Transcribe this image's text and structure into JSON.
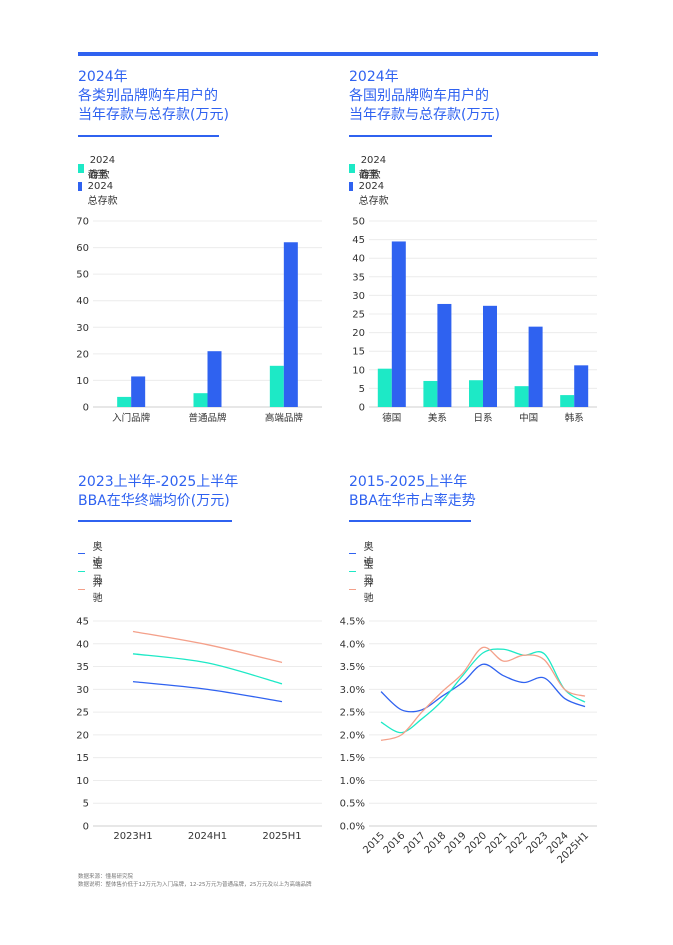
{
  "footer": {
    "source": "数据来源：懂易研究院",
    "note": "数据说明：整体售价低于12万元为入门品牌，12-25万元为普通品牌，25万元及以上为高端品牌"
  },
  "chart_data": [
    {
      "type": "bar",
      "title": "2024年\n各类别品牌购车用户的\n当年存款与总存款(万元)",
      "categories": [
        "入门品牌",
        "普通品牌",
        "高端品牌"
      ],
      "series": [
        {
          "name": "2024存款",
          "color": "#1de9c6",
          "values": [
            3.8,
            5.2,
            15.5
          ]
        },
        {
          "name": "截至2024总存款",
          "color": "#2f62f0",
          "values": [
            11.5,
            21.0,
            62.0
          ]
        }
      ],
      "ylim": [
        0,
        70
      ],
      "yticks": [
        0,
        10,
        20,
        30,
        40,
        50,
        60,
        70
      ],
      "grid": true,
      "legend": "top-left"
    },
    {
      "type": "bar",
      "title": "2024年\n各国别品牌购车用户的\n当年存款与总存款(万元)",
      "categories": [
        "德国",
        "美系",
        "日系",
        "中国",
        "韩系"
      ],
      "series": [
        {
          "name": "2024存款",
          "color": "#1de9c6",
          "values": [
            10.3,
            7.0,
            7.2,
            5.6,
            3.2
          ]
        },
        {
          "name": "截至2024总存款",
          "color": "#2f62f0",
          "values": [
            44.5,
            27.7,
            27.2,
            21.6,
            11.2
          ]
        }
      ],
      "ylim": [
        0,
        50
      ],
      "yticks": [
        0,
        5,
        10,
        15,
        20,
        25,
        30,
        35,
        40,
        45,
        50
      ],
      "grid": true,
      "legend": "top-left"
    },
    {
      "type": "line",
      "title": "2023上半年-2025上半年\nBBA在华终端均价(万元)",
      "categories": [
        "2023H1",
        "2024H1",
        "2025H1"
      ],
      "series": [
        {
          "name": "奥迪",
          "color": "#2f62f0",
          "values": [
            31.7,
            30.0,
            27.3
          ]
        },
        {
          "name": "宝马",
          "color": "#1de9c6",
          "values": [
            37.8,
            35.8,
            31.2
          ]
        },
        {
          "name": "奔驰",
          "color": "#f4a08a",
          "values": [
            42.7,
            39.8,
            35.9
          ]
        }
      ],
      "ylim": [
        0,
        45
      ],
      "yticks": [
        0,
        5,
        10,
        15,
        20,
        25,
        30,
        35,
        40,
        45
      ],
      "grid": true,
      "legend": "top-left"
    },
    {
      "type": "line",
      "title": "2015-2025上半年\nBBA在华市占率走势",
      "categories": [
        "2015",
        "2016",
        "2017",
        "2018",
        "2019",
        "2020",
        "2021",
        "2022",
        "2023",
        "2024",
        "2025H1"
      ],
      "series": [
        {
          "name": "奥迪",
          "color": "#2f62f0",
          "values": [
            2.95,
            2.55,
            2.55,
            2.85,
            3.15,
            3.55,
            3.3,
            3.15,
            3.25,
            2.8,
            2.62
          ]
        },
        {
          "name": "宝马",
          "color": "#1de9c6",
          "values": [
            2.28,
            2.05,
            2.35,
            2.75,
            3.3,
            3.8,
            3.88,
            3.75,
            3.78,
            3.0,
            2.72
          ]
        },
        {
          "name": "奔驰",
          "color": "#f4a08a",
          "values": [
            1.88,
            2.0,
            2.5,
            2.95,
            3.35,
            3.92,
            3.62,
            3.75,
            3.65,
            3.0,
            2.85
          ]
        }
      ],
      "ylim": [
        0,
        4.5
      ],
      "yticks": [
        "0.0%",
        "0.5%",
        "1.0%",
        "1.5%",
        "2.0%",
        "2.5%",
        "3.0%",
        "3.5%",
        "4.0%",
        "4.5%"
      ],
      "grid": true,
      "legend": "top-left"
    }
  ]
}
